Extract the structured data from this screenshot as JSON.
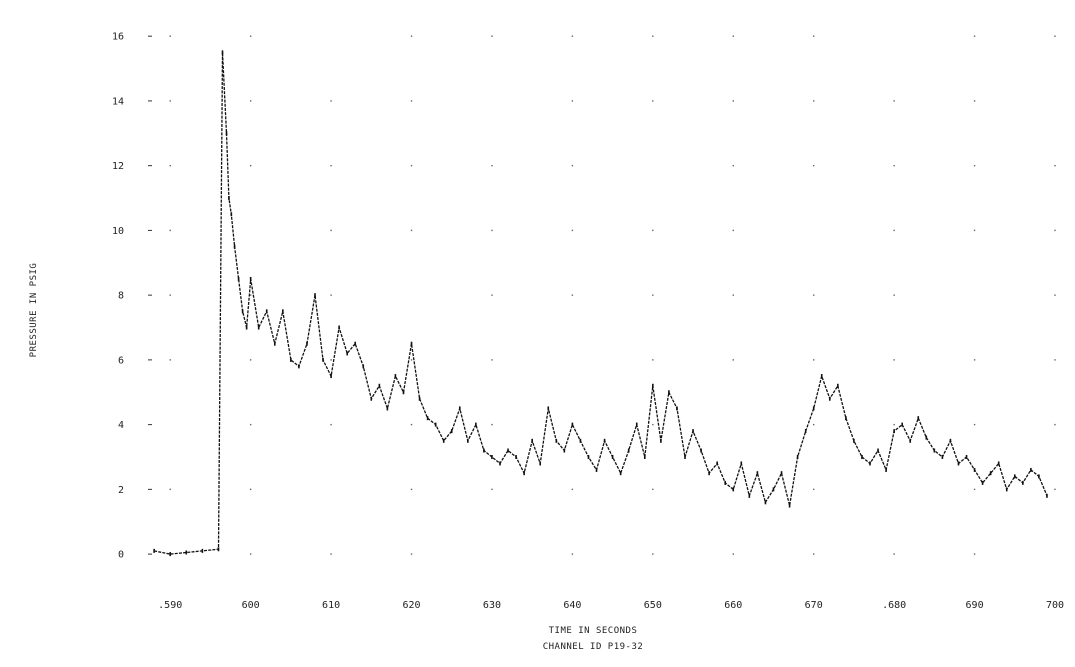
{
  "chart_data": {
    "type": "line",
    "title": "",
    "xlabel": "TIME IN SECONDS",
    "caption": "CHANNEL ID P19-32",
    "ylabel": "PRESSURE IN PSIG",
    "xlim": [
      585,
      700
    ],
    "ylim": [
      -0.8,
      16.5
    ],
    "grid": false,
    "x_ticks": [
      {
        "value": 590,
        "label": ".590"
      },
      {
        "value": 600,
        "label": "600"
      },
      {
        "value": 610,
        "label": "610"
      },
      {
        "value": 620,
        "label": "620"
      },
      {
        "value": 630,
        "label": "630"
      },
      {
        "value": 640,
        "label": "640"
      },
      {
        "value": 650,
        "label": "650"
      },
      {
        "value": 660,
        "label": "660"
      },
      {
        "value": 670,
        "label": "670"
      },
      {
        "value": 680,
        "label": ".680"
      },
      {
        "value": 690,
        "label": "690"
      },
      {
        "value": 700,
        "label": "700"
      }
    ],
    "y_ticks": [
      {
        "value": 0,
        "label": "0"
      },
      {
        "value": 2,
        "label": "2"
      },
      {
        "value": 4,
        "label": "4"
      },
      {
        "value": 6,
        "label": "6"
      },
      {
        "value": 8,
        "label": "8"
      },
      {
        "value": 10,
        "label": "10"
      },
      {
        "value": 12,
        "label": "12"
      },
      {
        "value": 14,
        "label": "14"
      },
      {
        "value": 16,
        "label": "16"
      }
    ],
    "series": [
      {
        "color": "#111111",
        "x": [
          588,
          590,
          592,
          594,
          596,
          596.5,
          597,
          597.3,
          597.6,
          598,
          598.5,
          599,
          599.5,
          600,
          601,
          602,
          603,
          604,
          605,
          606,
          607,
          608,
          609,
          610,
          611,
          612,
          613,
          614,
          615,
          616,
          617,
          618,
          619,
          620,
          621,
          622,
          623,
          624,
          625,
          626,
          627,
          628,
          629,
          630,
          631,
          632,
          633,
          634,
          635,
          636,
          637,
          638,
          639,
          640,
          641,
          642,
          643,
          644,
          645,
          646,
          647,
          648,
          649,
          650,
          651,
          652,
          653,
          654,
          655,
          656,
          657,
          658,
          659,
          660,
          661,
          662,
          663,
          664,
          665,
          666,
          667,
          668,
          669,
          670,
          671,
          672,
          673,
          674,
          675,
          676,
          677,
          678,
          679,
          680,
          681,
          682,
          683,
          684,
          685,
          686,
          687,
          688,
          689,
          690,
          691,
          692,
          693,
          694,
          695,
          696,
          697,
          698,
          699
        ],
        "y": [
          0.1,
          0.0,
          0.05,
          0.1,
          0.15,
          15.5,
          13.0,
          11.0,
          10.5,
          9.5,
          8.5,
          7.5,
          7.0,
          8.5,
          7.0,
          7.5,
          6.5,
          7.5,
          6.0,
          5.8,
          6.5,
          8.0,
          6.0,
          5.5,
          7.0,
          6.2,
          6.5,
          5.8,
          4.8,
          5.2,
          4.5,
          5.5,
          5.0,
          6.5,
          4.8,
          4.2,
          4.0,
          3.5,
          3.8,
          4.5,
          3.5,
          4.0,
          3.2,
          3.0,
          2.8,
          3.2,
          3.0,
          2.5,
          3.5,
          2.8,
          4.5,
          3.5,
          3.2,
          4.0,
          3.5,
          3.0,
          2.6,
          3.5,
          3.0,
          2.5,
          3.2,
          4.0,
          3.0,
          5.2,
          3.5,
          5.0,
          4.5,
          3.0,
          3.8,
          3.2,
          2.5,
          2.8,
          2.2,
          2.0,
          2.8,
          1.8,
          2.5,
          1.6,
          2.0,
          2.5,
          1.5,
          3.0,
          3.8,
          4.5,
          5.5,
          4.8,
          5.2,
          4.2,
          3.5,
          3.0,
          2.8,
          3.2,
          2.6,
          3.8,
          4.0,
          3.5,
          4.2,
          3.6,
          3.2,
          3.0,
          3.5,
          2.8,
          3.0,
          2.6,
          2.2,
          2.5,
          2.8,
          2.0,
          2.4,
          2.2,
          2.6,
          2.4,
          1.8
        ]
      }
    ]
  }
}
